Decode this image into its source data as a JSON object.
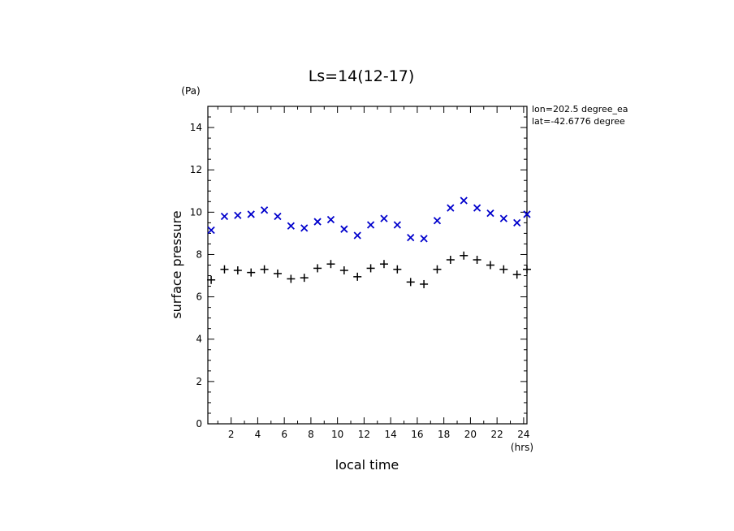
{
  "chart_data": {
    "type": "scatter",
    "title": "Ls=14(12-17)",
    "xlabel": "local time",
    "ylabel": "surface pressure",
    "x_unit": "(hrs)",
    "y_unit": "(Pa)",
    "annotations": [
      "lon=202.5 degree_ea",
      "lat=-42.6776 degree"
    ],
    "xlim": [
      0.25,
      24.25
    ],
    "ylim": [
      0,
      15
    ],
    "x_ticks": [
      2,
      4,
      6,
      8,
      10,
      12,
      14,
      16,
      18,
      20,
      22,
      24
    ],
    "y_ticks": [
      0,
      2,
      4,
      6,
      8,
      10,
      12,
      14
    ],
    "grid": false,
    "series": [
      {
        "marker": "x",
        "color": "#0000cc",
        "x": [
          0.5,
          1.5,
          2.5,
          3.5,
          4.5,
          5.5,
          6.5,
          7.5,
          8.5,
          9.5,
          10.5,
          11.5,
          12.5,
          13.5,
          14.5,
          15.5,
          16.5,
          17.5,
          18.5,
          19.5,
          20.5,
          21.5,
          22.5,
          23.5,
          24.25
        ],
        "y": [
          9.15,
          9.8,
          9.85,
          9.9,
          10.1,
          9.8,
          9.35,
          9.25,
          9.55,
          9.65,
          9.2,
          8.9,
          9.4,
          9.7,
          9.4,
          8.8,
          8.75,
          9.6,
          10.2,
          10.55,
          10.2,
          9.95,
          9.7,
          9.5,
          9.9
        ]
      },
      {
        "marker": "+",
        "color": "#000000",
        "x": [
          0.5,
          1.5,
          2.5,
          3.5,
          4.5,
          5.5,
          6.5,
          7.5,
          8.5,
          9.5,
          10.5,
          11.5,
          12.5,
          13.5,
          14.5,
          15.5,
          16.5,
          17.5,
          18.5,
          19.5,
          20.5,
          21.5,
          22.5,
          23.5,
          24.25
        ],
        "y": [
          6.8,
          7.3,
          7.25,
          7.15,
          7.3,
          7.1,
          6.85,
          6.9,
          7.35,
          7.55,
          7.25,
          6.95,
          7.35,
          7.55,
          7.3,
          6.7,
          6.6,
          7.3,
          7.75,
          7.95,
          7.75,
          7.5,
          7.3,
          7.05,
          7.3
        ]
      }
    ]
  },
  "colors": {
    "axis": "#000000",
    "series_x": "#0000cc",
    "series_plus": "#000000"
  }
}
